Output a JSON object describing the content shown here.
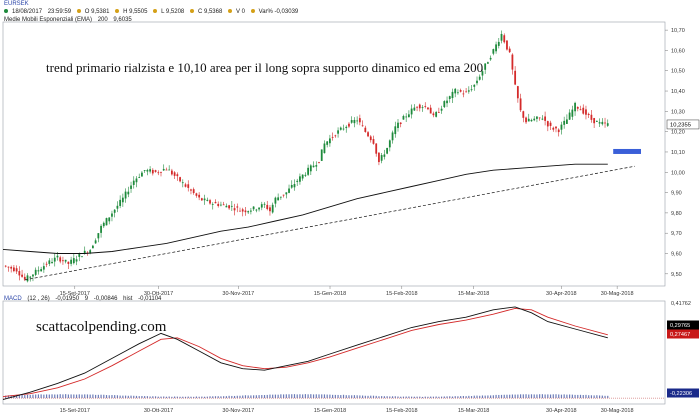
{
  "header": {
    "symbol": "EURSEK",
    "date": "18/08/2017",
    "time": "23:59:59",
    "open": "O 9,5381",
    "high": "H 9,5505",
    "low": "L 9,5208",
    "close": "C 9,5368",
    "volume": "V 0",
    "var": "Var% -0,03039",
    "ema_label": "Medie Mobili Esponenziali (EMA)",
    "ema_period": "200",
    "ema_value": "9,6035",
    "macd_label": "MACD",
    "macd_params": "(12 , 26)",
    "macd_v1": "-0,01950",
    "macd_v2": "9",
    "macd_v3": "-0,00846",
    "macd_hist_label": "hist",
    "macd_v4": "-0,01104"
  },
  "annotation": "trend primario rialzista e 10,10 area per il long sopra supporto dinamico ed ema 200",
  "watermark": "scattacolpending.com",
  "colors": {
    "bull": "#1e8a3c",
    "bear": "#d42a2a",
    "support_bar": "#3a5fd8",
    "macd_signal": "#d42a2a",
    "macd_line": "#111111",
    "histogram": "#3a4fa0",
    "price_badge": "#ffffff",
    "macd_badge_1": "#000000",
    "macd_badge_2": "#c81818",
    "macd_badge_3": "#1a2a8a"
  },
  "chart_data": [
    {
      "type": "candlestick",
      "x_ticks": [
        "15-Set-2017",
        "30-Ott-2017",
        "30-Nov-2017",
        "15-Gen-2018",
        "15-Feb-2018",
        "15-Mar-2018",
        "30-Apr-2018",
        "30-Mag-2018"
      ],
      "y_ticks": [
        "10,70",
        "10,60",
        "10,50",
        "10,40",
        "10,30",
        "10,20",
        "10,10",
        "10,00",
        "9,90",
        "9,80",
        "9,70",
        "9,60",
        "9,50"
      ],
      "ylim": [
        9.44,
        10.74
      ],
      "last_price": "10,2355",
      "price_path": [
        [
          0,
          9.54
        ],
        [
          5,
          9.52
        ],
        [
          8,
          9.47
        ],
        [
          12,
          9.51
        ],
        [
          16,
          9.55
        ],
        [
          20,
          9.58
        ],
        [
          24,
          9.55
        ],
        [
          28,
          9.59
        ],
        [
          32,
          9.62
        ],
        [
          36,
          9.73
        ],
        [
          40,
          9.8
        ],
        [
          44,
          9.87
        ],
        [
          48,
          9.96
        ],
        [
          52,
          10.01
        ],
        [
          56,
          10.0
        ],
        [
          60,
          10.02
        ],
        [
          64,
          9.97
        ],
        [
          68,
          9.92
        ],
        [
          72,
          9.87
        ],
        [
          76,
          9.85
        ],
        [
          80,
          9.84
        ],
        [
          84,
          9.83
        ],
        [
          88,
          9.81
        ],
        [
          92,
          9.82
        ],
        [
          96,
          9.84
        ],
        [
          98,
          9.81
        ],
        [
          100,
          9.87
        ],
        [
          104,
          9.9
        ],
        [
          108,
          9.96
        ],
        [
          112,
          10.01
        ],
        [
          116,
          10.06
        ],
        [
          118,
          10.14
        ],
        [
          122,
          10.19
        ],
        [
          126,
          10.23
        ],
        [
          130,
          10.26
        ],
        [
          133,
          10.2
        ],
        [
          136,
          10.15
        ],
        [
          138,
          10.05
        ],
        [
          141,
          10.12
        ],
        [
          144,
          10.22
        ],
        [
          148,
          10.28
        ],
        [
          152,
          10.33
        ],
        [
          156,
          10.32
        ],
        [
          158,
          10.27
        ],
        [
          162,
          10.34
        ],
        [
          166,
          10.4
        ],
        [
          170,
          10.39
        ],
        [
          173,
          10.43
        ],
        [
          176,
          10.5
        ],
        [
          180,
          10.6
        ],
        [
          183,
          10.68
        ],
        [
          186,
          10.58
        ],
        [
          188,
          10.42
        ],
        [
          190,
          10.3
        ],
        [
          192,
          10.25
        ],
        [
          195,
          10.26
        ],
        [
          198,
          10.27
        ],
        [
          201,
          10.22
        ],
        [
          204,
          10.21
        ],
        [
          207,
          10.26
        ],
        [
          210,
          10.33
        ],
        [
          213,
          10.3
        ],
        [
          216,
          10.26
        ],
        [
          219,
          10.24
        ],
        [
          222,
          10.2355
        ]
      ],
      "ema_200": [
        [
          0,
          9.62
        ],
        [
          10,
          9.61
        ],
        [
          20,
          9.6
        ],
        [
          30,
          9.6
        ],
        [
          40,
          9.61
        ],
        [
          50,
          9.63
        ],
        [
          60,
          9.65
        ],
        [
          70,
          9.68
        ],
        [
          80,
          9.71
        ],
        [
          90,
          9.73
        ],
        [
          100,
          9.76
        ],
        [
          110,
          9.79
        ],
        [
          120,
          9.83
        ],
        [
          130,
          9.87
        ],
        [
          140,
          9.9
        ],
        [
          150,
          9.93
        ],
        [
          160,
          9.96
        ],
        [
          170,
          9.99
        ],
        [
          180,
          10.01
        ],
        [
          190,
          10.02
        ],
        [
          200,
          10.03
        ],
        [
          210,
          10.04
        ],
        [
          222,
          10.04
        ]
      ],
      "trendline": [
        [
          8,
          9.47
        ],
        [
          232,
          10.03
        ]
      ],
      "support_zone": 10.1
    },
    {
      "type": "line",
      "y_ticks": [
        "0,41762",
        "0,29765",
        "0,27467",
        "-0,22306"
      ],
      "series": [
        {
          "points": [
            [
              0,
              -0.23
            ],
            [
              10,
              -0.18
            ],
            [
              20,
              -0.12
            ],
            [
              30,
              -0.05
            ],
            [
              40,
              0.05
            ],
            [
              50,
              0.15
            ],
            [
              58,
              0.22
            ],
            [
              64,
              0.18
            ],
            [
              72,
              0.1
            ],
            [
              80,
              0.02
            ],
            [
              88,
              -0.02
            ],
            [
              96,
              -0.03
            ],
            [
              104,
              0.0
            ],
            [
              112,
              0.03
            ],
            [
              120,
              0.08
            ],
            [
              130,
              0.14
            ],
            [
              140,
              0.2
            ],
            [
              150,
              0.26
            ],
            [
              160,
              0.3
            ],
            [
              170,
              0.33
            ],
            [
              180,
              0.38
            ],
            [
              188,
              0.4
            ],
            [
              194,
              0.36
            ],
            [
              200,
              0.3
            ],
            [
              210,
              0.25
            ],
            [
              222,
              0.19
            ]
          ]
        },
        {
          "points": [
            [
              0,
              -0.21
            ],
            [
              10,
              -0.19
            ],
            [
              20,
              -0.15
            ],
            [
              30,
              -0.09
            ],
            [
              40,
              0.0
            ],
            [
              50,
              0.1
            ],
            [
              58,
              0.18
            ],
            [
              64,
              0.19
            ],
            [
              72,
              0.13
            ],
            [
              80,
              0.05
            ],
            [
              88,
              0.0
            ],
            [
              96,
              -0.02
            ],
            [
              104,
              -0.01
            ],
            [
              112,
              0.02
            ],
            [
              120,
              0.06
            ],
            [
              130,
              0.12
            ],
            [
              140,
              0.18
            ],
            [
              150,
              0.24
            ],
            [
              160,
              0.28
            ],
            [
              170,
              0.31
            ],
            [
              180,
              0.35
            ],
            [
              188,
              0.39
            ],
            [
              194,
              0.38
            ],
            [
              200,
              0.33
            ],
            [
              210,
              0.27
            ],
            [
              222,
              0.21
            ]
          ]
        }
      ],
      "ylim": [
        -0.26,
        0.44
      ]
    }
  ],
  "macd_values": {
    "macd": "0,29765",
    "signal": "0,27467",
    "histogram": "-0,22306",
    "max": "0,41762"
  }
}
